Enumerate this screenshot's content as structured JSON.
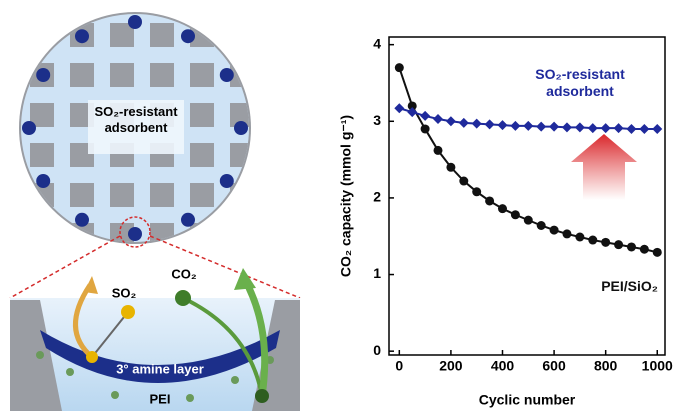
{
  "diagram": {
    "particle_label": "SO₂-resistant adsorbent",
    "so2": "SO₂",
    "co2": "CO₂",
    "amine_layer": "3° amine layer",
    "support": "PEI"
  },
  "chart_data": {
    "type": "line",
    "xlabel": "Cyclic number",
    "ylabel": "CO₂ capacity (mmol g⁻¹)",
    "x": [
      0,
      50,
      100,
      150,
      200,
      250,
      300,
      350,
      400,
      450,
      500,
      550,
      600,
      650,
      700,
      750,
      800,
      850,
      900,
      950,
      1000
    ],
    "series": [
      {
        "name": "PEI/SiO₂",
        "color": "#111111",
        "values": [
          3.7,
          3.2,
          2.9,
          2.62,
          2.4,
          2.22,
          2.08,
          1.96,
          1.86,
          1.78,
          1.71,
          1.64,
          1.58,
          1.53,
          1.49,
          1.45,
          1.42,
          1.39,
          1.36,
          1.33,
          1.29
        ]
      },
      {
        "name": "SO₂-resistant adsorbent",
        "color": "#1f2a9c",
        "values": [
          3.17,
          3.12,
          3.07,
          3.03,
          3.0,
          2.98,
          2.97,
          2.96,
          2.95,
          2.94,
          2.94,
          2.93,
          2.93,
          2.92,
          2.92,
          2.91,
          2.91,
          2.91,
          2.9,
          2.9,
          2.9
        ]
      }
    ],
    "xlim": [
      -40,
      1030
    ],
    "ylim": [
      -0.05,
      4.1
    ],
    "xticks": [
      0,
      200,
      400,
      600,
      800,
      1000
    ],
    "yticks": [
      0,
      1,
      2,
      3,
      4
    ]
  }
}
